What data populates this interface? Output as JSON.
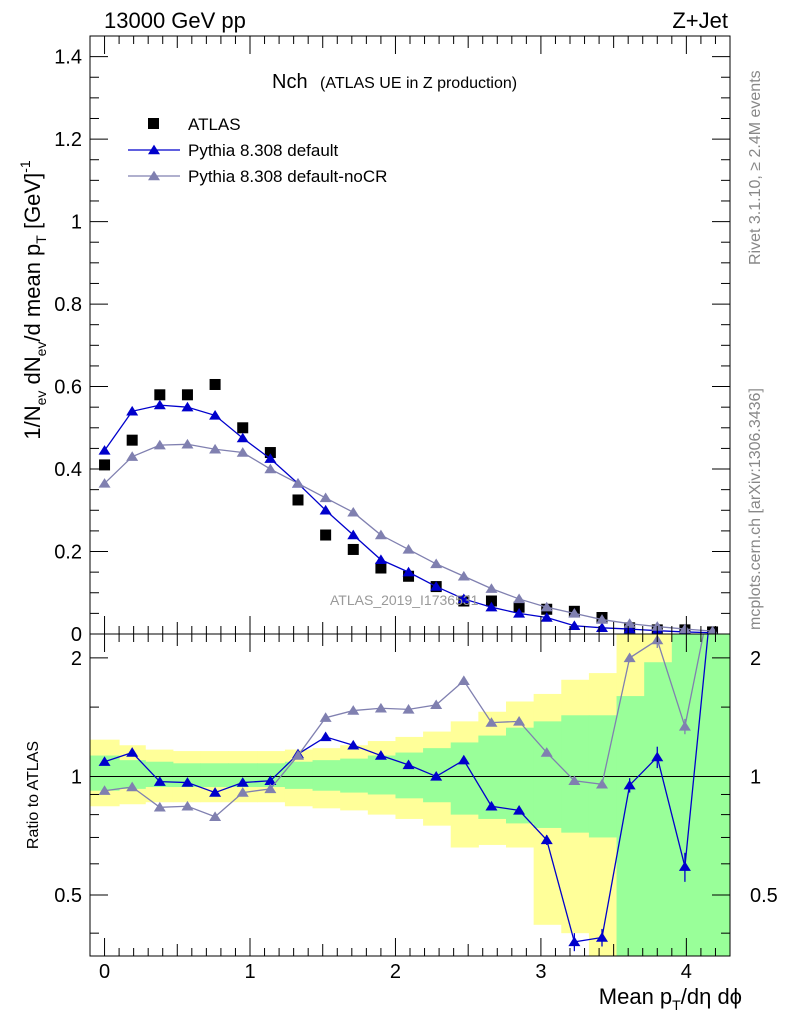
{
  "header": {
    "left": "13000 GeV pp",
    "right": "Z+Jet"
  },
  "side_labels": {
    "rivet": "Rivet 3.1.10, ≥ 2.4M events",
    "mcplots": "mcplots.cern.ch [arXiv:1306.3436]"
  },
  "chart_data": {
    "type": "scatter",
    "title": "Nch",
    "subtitle": "(ATLAS UE in Z production)",
    "watermark": "ATLAS_2019_I1736531",
    "x_tick_labels": [
      "0",
      "1",
      "2",
      "3",
      "4"
    ],
    "xlim": [
      -0.1,
      4.3
    ],
    "main": {
      "ylabel": "1/N_ev dN_ev/d mean p_T [GeV]^-1",
      "ylim": [
        0,
        1.45
      ],
      "y_tick_labels": [
        "0",
        "0.2",
        "0.4",
        "0.6",
        "0.8",
        "1",
        "1.2",
        "1.4"
      ],
      "legend_position": "top-left",
      "series": [
        {
          "name": "ATLAS",
          "color": "#000000",
          "marker": "square",
          "x": [
            0.0,
            0.19,
            0.38,
            0.57,
            0.76,
            0.95,
            1.14,
            1.33,
            1.52,
            1.71,
            1.9,
            2.09,
            2.28,
            2.47,
            2.66,
            2.85,
            3.04,
            3.23,
            3.42,
            3.61,
            3.8,
            3.99,
            4.18
          ],
          "y": [
            0.41,
            0.47,
            0.58,
            0.58,
            0.605,
            0.5,
            0.44,
            0.325,
            0.24,
            0.205,
            0.16,
            0.14,
            0.115,
            0.08,
            0.08,
            0.065,
            0.06,
            0.055,
            0.04,
            0.015,
            0.01,
            0.01,
            0.005
          ]
        },
        {
          "name": "Pythia 8.308 default",
          "color": "#0000cc",
          "marker": "triangle",
          "x": [
            0.0,
            0.19,
            0.38,
            0.57,
            0.76,
            0.95,
            1.14,
            1.33,
            1.52,
            1.71,
            1.9,
            2.09,
            2.28,
            2.47,
            2.66,
            2.85,
            3.04,
            3.23,
            3.42,
            3.61,
            3.8,
            3.99,
            4.18
          ],
          "y": [
            0.445,
            0.54,
            0.555,
            0.55,
            0.53,
            0.475,
            0.425,
            0.365,
            0.3,
            0.24,
            0.18,
            0.15,
            0.115,
            0.085,
            0.065,
            0.05,
            0.04,
            0.02,
            0.015,
            0.012,
            0.008,
            0.005,
            0.003
          ]
        },
        {
          "name": "Pythia 8.308 default-noCR",
          "color": "#8080b0",
          "marker": "triangle",
          "x": [
            0.0,
            0.19,
            0.38,
            0.57,
            0.76,
            0.95,
            1.14,
            1.33,
            1.52,
            1.71,
            1.9,
            2.09,
            2.28,
            2.47,
            2.66,
            2.85,
            3.04,
            3.23,
            3.42,
            3.61,
            3.8,
            3.99,
            4.18
          ],
          "y": [
            0.365,
            0.43,
            0.458,
            0.46,
            0.448,
            0.44,
            0.4,
            0.365,
            0.33,
            0.295,
            0.24,
            0.205,
            0.17,
            0.14,
            0.11,
            0.085,
            0.065,
            0.05,
            0.035,
            0.025,
            0.018,
            0.012,
            0.007
          ]
        }
      ]
    },
    "ratio": {
      "ylabel": "Ratio to ATLAS",
      "ylim": [
        0.35,
        2.3
      ],
      "log_scale": true,
      "y_tick_labels_left": [
        "0.5",
        "1",
        "2"
      ],
      "y_tick_labels_right": [
        "0.5",
        "1",
        "2"
      ],
      "y_ticks": [
        0.5,
        1,
        2
      ],
      "band_edges": [
        -0.1,
        0.1,
        0.28,
        0.47,
        0.66,
        0.85,
        1.05,
        1.24,
        1.43,
        1.62,
        1.81,
        2.0,
        2.19,
        2.38,
        2.57,
        2.76,
        2.95,
        3.14,
        3.33,
        3.52,
        3.71,
        3.9,
        4.09,
        4.3
      ],
      "band_yellow": [
        [
          0.84,
          1.24
        ],
        [
          0.85,
          1.2
        ],
        [
          0.86,
          1.17
        ],
        [
          0.86,
          1.16
        ],
        [
          0.86,
          1.16
        ],
        [
          0.86,
          1.16
        ],
        [
          0.86,
          1.16
        ],
        [
          0.84,
          1.17
        ],
        [
          0.83,
          1.18
        ],
        [
          0.82,
          1.2
        ],
        [
          0.8,
          1.23
        ],
        [
          0.78,
          1.26
        ],
        [
          0.75,
          1.3
        ],
        [
          0.66,
          1.38
        ],
        [
          0.67,
          1.46
        ],
        [
          0.66,
          1.55
        ],
        [
          0.42,
          1.62
        ],
        [
          0.4,
          1.76
        ],
        [
          0.3,
          1.83
        ],
        [
          0.3,
          2.3
        ],
        [
          0.3,
          2.3
        ],
        [
          0.3,
          2.3
        ],
        [
          0.3,
          2.3
        ]
      ],
      "band_green": [
        [
          0.92,
          1.13
        ],
        [
          0.93,
          1.1
        ],
        [
          0.94,
          1.09
        ],
        [
          0.94,
          1.08
        ],
        [
          0.94,
          1.08
        ],
        [
          0.94,
          1.08
        ],
        [
          0.94,
          1.08
        ],
        [
          0.93,
          1.09
        ],
        [
          0.92,
          1.1
        ],
        [
          0.91,
          1.11
        ],
        [
          0.9,
          1.13
        ],
        [
          0.88,
          1.15
        ],
        [
          0.86,
          1.18
        ],
        [
          0.8,
          1.22
        ],
        [
          0.78,
          1.27
        ],
        [
          0.76,
          1.33
        ],
        [
          0.74,
          1.38
        ],
        [
          0.72,
          1.43
        ],
        [
          0.7,
          1.43
        ],
        [
          0.3,
          1.6
        ],
        [
          0.3,
          1.95
        ],
        [
          0.3,
          2.3
        ],
        [
          0.3,
          2.3
        ]
      ],
      "series": [
        {
          "name": "Pythia 8.308 default",
          "color": "#0000cc",
          "x": [
            0.0,
            0.19,
            0.38,
            0.57,
            0.76,
            0.95,
            1.14,
            1.33,
            1.52,
            1.71,
            1.9,
            2.09,
            2.28,
            2.47,
            2.66,
            2.85,
            3.04,
            3.23,
            3.42,
            3.61,
            3.8,
            3.99,
            4.18
          ],
          "y": [
            1.09,
            1.15,
            0.97,
            0.965,
            0.91,
            0.965,
            0.975,
            1.14,
            1.26,
            1.2,
            1.13,
            1.07,
            1.0,
            1.1,
            0.84,
            0.82,
            0.69,
            0.38,
            0.39,
            0.95,
            1.12,
            0.59,
            3.0
          ],
          "yerr": [
            0,
            0,
            0,
            0,
            0,
            0,
            0,
            0,
            0,
            0,
            0,
            0,
            0,
            0,
            0,
            0.01,
            0.02,
            0.02,
            0.02,
            0.04,
            0.07,
            0.05,
            0
          ]
        },
        {
          "name": "Pythia 8.308 default-noCR",
          "color": "#8080b0",
          "x": [
            0.0,
            0.19,
            0.38,
            0.57,
            0.76,
            0.95,
            1.14,
            1.33,
            1.52,
            1.71,
            1.9,
            2.09,
            2.28,
            2.47,
            2.66,
            2.85,
            3.04,
            3.23,
            3.42,
            3.61,
            3.8,
            3.99,
            4.18
          ],
          "y": [
            0.92,
            0.94,
            0.835,
            0.84,
            0.79,
            0.91,
            0.93,
            1.13,
            1.41,
            1.47,
            1.49,
            1.48,
            1.52,
            1.75,
            1.37,
            1.38,
            1.15,
            0.975,
            0.955,
            2.0,
            2.22,
            1.34,
            3.0
          ],
          "yerr": [
            0,
            0,
            0,
            0,
            0,
            0,
            0,
            0,
            0,
            0,
            0,
            0,
            0,
            0,
            0,
            0,
            0.02,
            0,
            0.01,
            0.05,
            0.1,
            0.06,
            0
          ]
        }
      ]
    }
  }
}
